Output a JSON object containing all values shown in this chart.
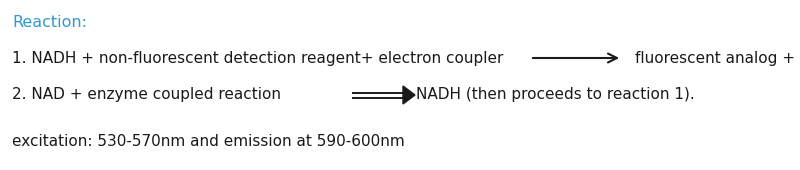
{
  "title": "Reaction:",
  "title_color": "#3399CC",
  "bg_color": "#ffffff",
  "line1_left": "1. NADH + non-fluorescent detection reagent+ electron coupler",
  "line1_right": "fluorescent analog + NAD",
  "line2_left": "2. NAD + enzyme coupled reaction ",
  "line2_right": "NADH (then proceeds to reaction 1).",
  "line3": "excitation: 530-570nm and emission at 590-600nm",
  "text_color": "#1a1a1a",
  "fontsize": 11.0,
  "title_fontsize": 11.5
}
